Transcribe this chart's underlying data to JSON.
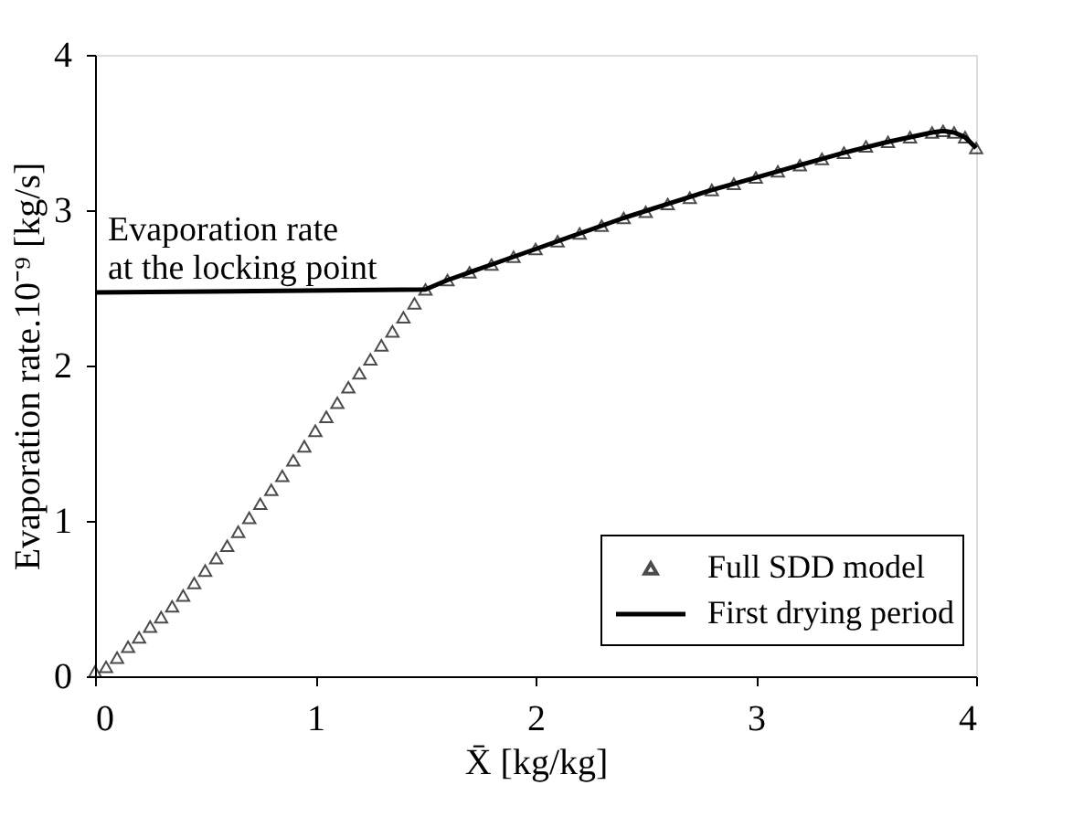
{
  "chart_data": {
    "type": "scatter",
    "xlabel": "X̄ [kg/kg]",
    "ylabel": "Evaporation rate.10⁻⁹ [kg/s]",
    "xlim": [
      0,
      4
    ],
    "ylim": [
      0,
      4
    ],
    "xticks": [
      0,
      1,
      2,
      3,
      4
    ],
    "yticks": [
      0,
      1,
      2,
      3,
      4
    ],
    "grid": false,
    "legend": "bottom right",
    "annotations": [
      "Evaporation rate\nat the locking point"
    ],
    "series": [
      {
        "name": "Full SDD model",
        "marker": "triangle",
        "color": "#000000",
        "x": [
          0,
          0.05,
          0.1,
          0.15,
          0.2,
          0.25,
          0.3,
          0.35,
          0.4,
          0.45,
          0.5,
          0.55,
          0.6,
          0.65,
          0.7,
          0.75,
          0.8,
          0.85,
          0.9,
          0.95,
          1.0,
          1.05,
          1.1,
          1.15,
          1.2,
          1.25,
          1.3,
          1.35,
          1.4,
          1.45,
          1.5,
          1.6,
          1.7,
          1.8,
          1.9,
          2.0,
          2.1,
          2.2,
          2.3,
          2.4,
          2.5,
          2.6,
          2.7,
          2.8,
          2.9,
          3.0,
          3.1,
          3.2,
          3.3,
          3.4,
          3.5,
          3.6,
          3.7,
          3.8,
          3.85,
          3.9,
          3.95,
          4.0
        ],
        "values": [
          0.03,
          0.06,
          0.12,
          0.19,
          0.25,
          0.32,
          0.38,
          0.45,
          0.52,
          0.6,
          0.68,
          0.76,
          0.84,
          0.93,
          1.02,
          1.11,
          1.2,
          1.29,
          1.39,
          1.48,
          1.58,
          1.67,
          1.76,
          1.86,
          1.95,
          2.04,
          2.13,
          2.22,
          2.31,
          2.4,
          2.49,
          2.55,
          2.6,
          2.65,
          2.7,
          2.75,
          2.8,
          2.85,
          2.9,
          2.95,
          2.99,
          3.04,
          3.08,
          3.13,
          3.17,
          3.21,
          3.25,
          3.29,
          3.33,
          3.37,
          3.41,
          3.44,
          3.47,
          3.5,
          3.51,
          3.5,
          3.47,
          3.4
        ]
      },
      {
        "name": "First drying period",
        "type": "line",
        "line_style": "solid",
        "color": "#000000",
        "x": [
          0,
          1.5,
          1.6,
          1.8,
          2.0,
          2.2,
          2.4,
          2.6,
          2.8,
          3.0,
          3.2,
          3.4,
          3.6,
          3.8,
          3.85,
          3.9,
          3.95,
          4.0
        ],
        "values": [
          2.47,
          2.49,
          2.55,
          2.65,
          2.75,
          2.85,
          2.95,
          3.04,
          3.13,
          3.21,
          3.29,
          3.37,
          3.44,
          3.5,
          3.51,
          3.5,
          3.47,
          3.4
        ]
      }
    ]
  }
}
